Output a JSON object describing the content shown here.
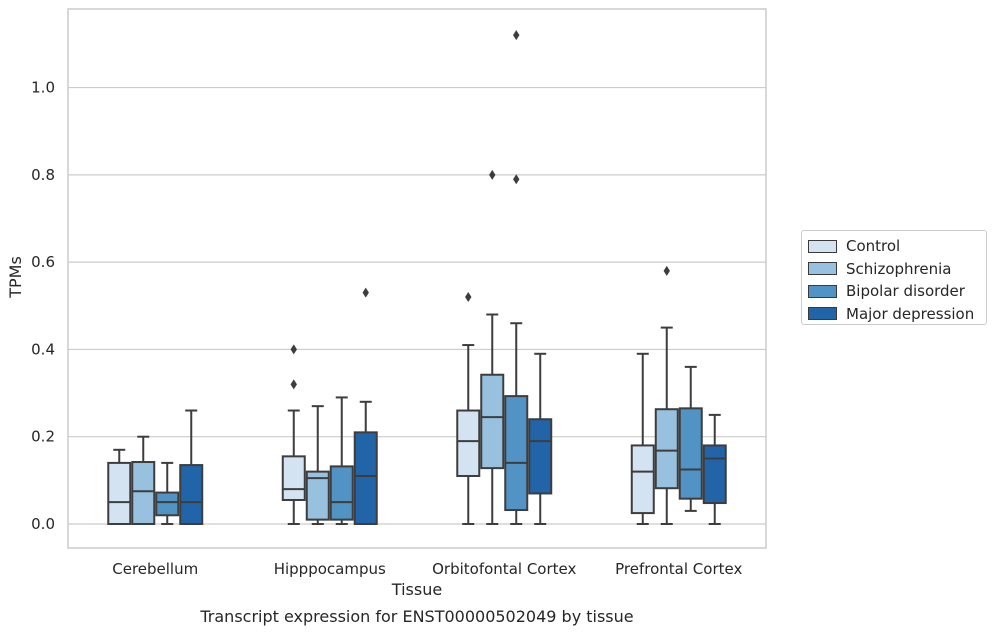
{
  "chart_data": {
    "type": "box",
    "subtitle": "Transcript expression for ENST00000502049 by tissue",
    "xlabel": "Tissue",
    "ylabel": "TPMs",
    "ylim": [
      -0.055,
      1.18
    ],
    "yticks": [
      "0.0",
      "0.2",
      "0.4",
      "0.6",
      "0.8",
      "1.0"
    ],
    "grid": true,
    "legend_position": "right",
    "categories": [
      "Cerebellum",
      "Hipppocampus",
      "Orbitofontal Cortex",
      "Prefrontal Cortex"
    ],
    "series": [
      {
        "name": "Control",
        "color": "#d4e3f2",
        "boxes": [
          {
            "whislo": 0.0,
            "q1": 0.0,
            "med": 0.05,
            "q3": 0.14,
            "whishi": 0.17,
            "fliers": []
          },
          {
            "whislo": 0.0,
            "q1": 0.055,
            "med": 0.08,
            "q3": 0.155,
            "whishi": 0.26,
            "fliers": [
              0.32,
              0.4
            ]
          },
          {
            "whislo": 0.0,
            "q1": 0.11,
            "med": 0.19,
            "q3": 0.26,
            "whishi": 0.41,
            "fliers": [
              0.52
            ]
          },
          {
            "whislo": 0.0,
            "q1": 0.025,
            "med": 0.12,
            "q3": 0.18,
            "whishi": 0.39,
            "fliers": []
          }
        ]
      },
      {
        "name": "Schizophrenia",
        "color": "#97c1de",
        "boxes": [
          {
            "whislo": 0.0,
            "q1": 0.0,
            "med": 0.075,
            "q3": 0.142,
            "whishi": 0.2,
            "fliers": []
          },
          {
            "whislo": 0.0,
            "q1": 0.01,
            "med": 0.105,
            "q3": 0.12,
            "whishi": 0.27,
            "fliers": []
          },
          {
            "whislo": 0.0,
            "q1": 0.128,
            "med": 0.245,
            "q3": 0.342,
            "whishi": 0.48,
            "fliers": [
              0.8
            ]
          },
          {
            "whislo": 0.0,
            "q1": 0.082,
            "med": 0.168,
            "q3": 0.263,
            "whishi": 0.45,
            "fliers": [
              0.58
            ]
          }
        ]
      },
      {
        "name": "Bipolar disorder",
        "color": "#5093c4",
        "boxes": [
          {
            "whislo": 0.0,
            "q1": 0.02,
            "med": 0.05,
            "q3": 0.072,
            "whishi": 0.14,
            "fliers": []
          },
          {
            "whislo": 0.0,
            "q1": 0.01,
            "med": 0.05,
            "q3": 0.132,
            "whishi": 0.29,
            "fliers": []
          },
          {
            "whislo": 0.0,
            "q1": 0.032,
            "med": 0.14,
            "q3": 0.293,
            "whishi": 0.46,
            "fliers": [
              0.79,
              1.12
            ]
          },
          {
            "whislo": 0.03,
            "q1": 0.058,
            "med": 0.125,
            "q3": 0.265,
            "whishi": 0.36,
            "fliers": []
          }
        ]
      },
      {
        "name": "Major depression",
        "color": "#2264a8",
        "boxes": [
          {
            "whislo": 0.0,
            "q1": 0.0,
            "med": 0.05,
            "q3": 0.135,
            "whishi": 0.26,
            "fliers": []
          },
          {
            "whislo": 0.0,
            "q1": 0.0,
            "med": 0.11,
            "q3": 0.21,
            "whishi": 0.28,
            "fliers": [
              0.53
            ]
          },
          {
            "whislo": 0.0,
            "q1": 0.07,
            "med": 0.19,
            "q3": 0.24,
            "whishi": 0.39,
            "fliers": []
          },
          {
            "whislo": 0.0,
            "q1": 0.048,
            "med": 0.15,
            "q3": 0.18,
            "whishi": 0.25,
            "fliers": []
          }
        ]
      }
    ]
  }
}
